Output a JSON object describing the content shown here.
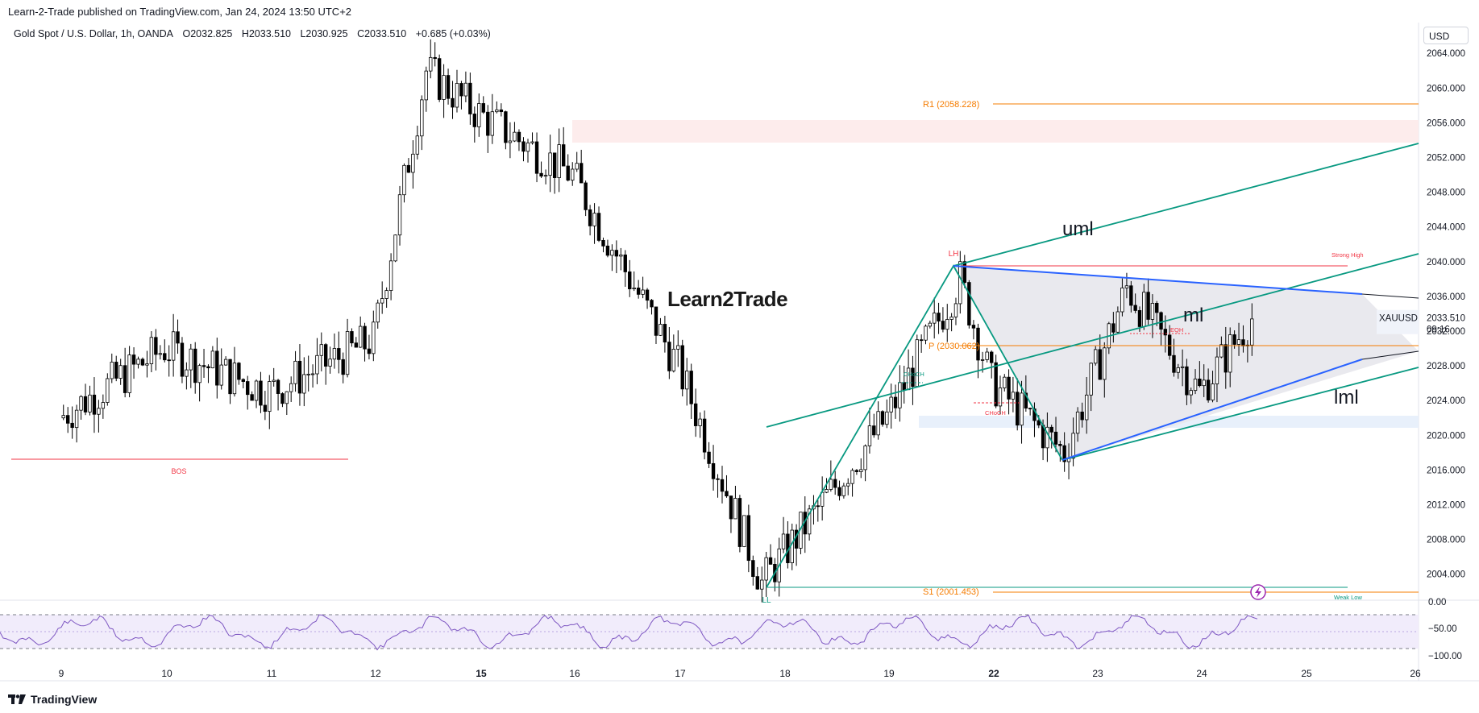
{
  "header": {
    "published": "Learn-2-Trade published on TradingView.com, Jan 24, 2024 13:50 UTC+2"
  },
  "legend": {
    "symbol": "Gold Spot / U.S. Dollar, 1h, OANDA",
    "open": "O2032.825",
    "high": "H2033.510",
    "low": "L2030.925",
    "close": "C2033.510",
    "change": "+0.685 (+0.03%)"
  },
  "currency": "USD",
  "watermark": "Learn2Trade",
  "footer": {
    "brand": "TradingView"
  },
  "colors": {
    "up": "#ffffff",
    "down": "#000000",
    "candle_border": "#000000",
    "pitchfork": "#089981",
    "blue_line": "#2962ff",
    "pivot": "#f57c00",
    "red_level": "#f23645",
    "rsi": "#7e57c2",
    "green_label": "#089981"
  },
  "chart_data": {
    "type": "candlestick",
    "title": "Gold Spot / U.S. Dollar, 1h, OANDA",
    "x_ticks": [
      "9",
      "10",
      "11",
      "12",
      "15",
      "16",
      "17",
      "18",
      "19",
      "22",
      "23",
      "24",
      "25",
      "26"
    ],
    "y_ticks": [
      "2064.000",
      "2060.000",
      "2056.000",
      "2052.000",
      "2048.000",
      "2044.000",
      "2040.000",
      "2036.000",
      "2032.000",
      "2028.000",
      "2024.000",
      "2020.000",
      "2016.000",
      "2012.000",
      "2008.000",
      "2004.000"
    ],
    "y_range": [
      2001.0,
      2065.5
    ],
    "last_price": "2033.510",
    "countdown": "09:16",
    "symbol_tag": "XAUUSD",
    "approx_close_path": [
      {
        "day": "9",
        "close": 2022
      },
      {
        "day": "10",
        "close": 2030
      },
      {
        "day": "11",
        "close": 2025
      },
      {
        "day": "12",
        "close": 2031
      },
      {
        "day": "12.5",
        "close": 2062
      },
      {
        "day": "15",
        "close": 2057
      },
      {
        "day": "16",
        "close": 2050
      },
      {
        "day": "17",
        "close": 2028
      },
      {
        "day": "17.8",
        "close": 2003
      },
      {
        "day": "19",
        "close": 2022
      },
      {
        "day": "19.7",
        "close": 2038
      },
      {
        "day": "22",
        "close": 2026
      },
      {
        "day": "22.7",
        "close": 2018
      },
      {
        "day": "23.3",
        "close": 2037
      },
      {
        "day": "24",
        "close": 2025
      },
      {
        "day": "24.5",
        "close": 2033.51
      }
    ],
    "annotations": {
      "pivot_r1": "R1 (2058.228)",
      "pivot_p": "P (2030.062)",
      "pivot_s1": "S1 (2001.453)",
      "bos": "BOS",
      "lh": "LH",
      "low_mark": "LL",
      "choch1": "CHoCH",
      "choch2": "CHoCH",
      "eqh": "EQH",
      "strong_high": "Strong High",
      "weak_low": "Weak Low",
      "uml": "uml",
      "ml": "ml",
      "lml": "lml"
    },
    "rsi": {
      "ticks": [
        "0.00",
        "−50.00",
        "−100.00"
      ],
      "range": [
        -100,
        0
      ]
    }
  }
}
